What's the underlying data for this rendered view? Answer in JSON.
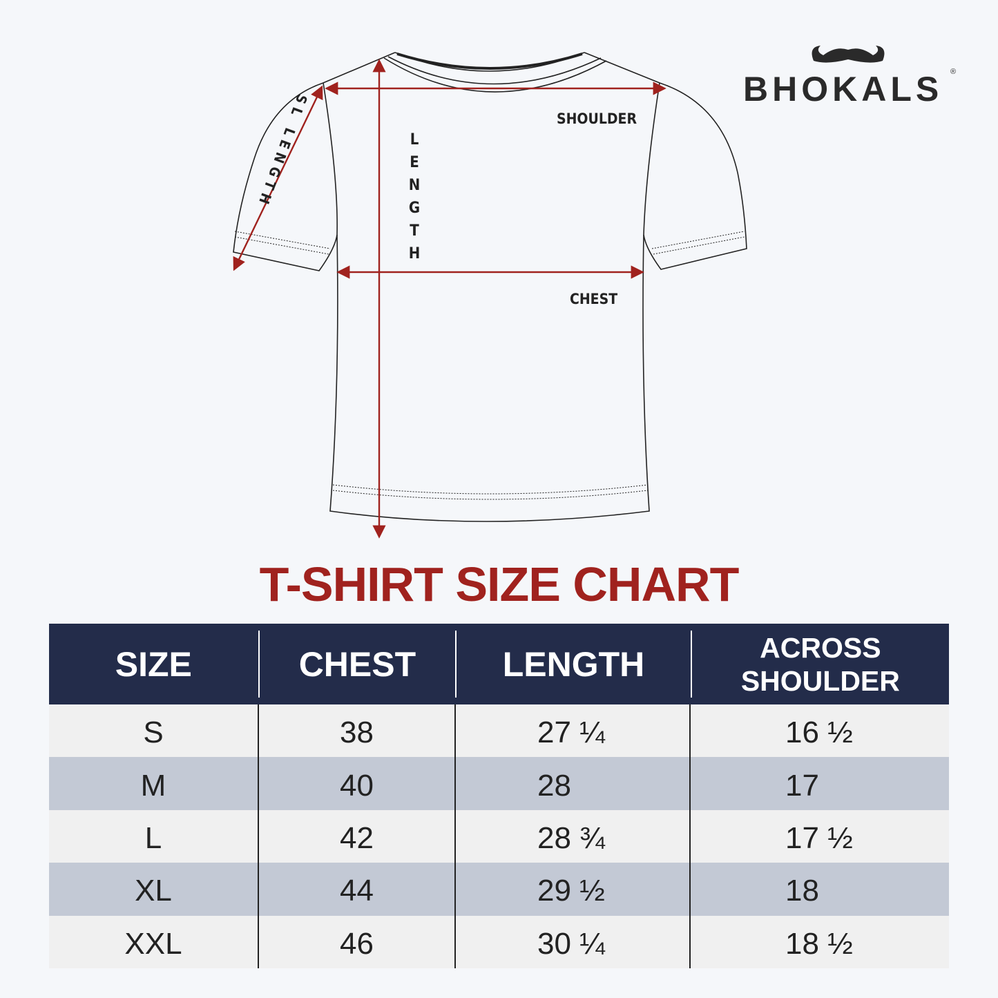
{
  "brand": {
    "name": "BHOKALS",
    "registered": "®",
    "icon": "mustache-icon"
  },
  "diagram": {
    "labels": {
      "shoulder": "SHOULDER",
      "length": "LENGTH",
      "chest": "CHEST",
      "sleeve": "SL LENGTH"
    },
    "arrow_color": "#a0221e"
  },
  "title": "T-SHIRT SIZE CHART",
  "table": {
    "headers": [
      "SIZE",
      "CHEST",
      "LENGTH",
      "ACROSS SHOULDER"
    ],
    "header_lines": {
      "across": "ACROSS",
      "shoulder": "SHOULDER"
    },
    "rows": [
      [
        "S",
        "38",
        "27 ¼",
        "16 ½"
      ],
      [
        "M",
        "40",
        "28",
        "17"
      ],
      [
        "L",
        "42",
        "28 ¾",
        "17 ½"
      ],
      [
        "XL",
        "44",
        "29 ½",
        "18"
      ],
      [
        "XXL",
        "46",
        "30 ¼",
        "18 ½"
      ]
    ],
    "colors": {
      "header_bg": "#232c4a",
      "row_light": "#f0f0f0",
      "row_dark": "#c3c9d5",
      "title": "#a0221e"
    }
  }
}
